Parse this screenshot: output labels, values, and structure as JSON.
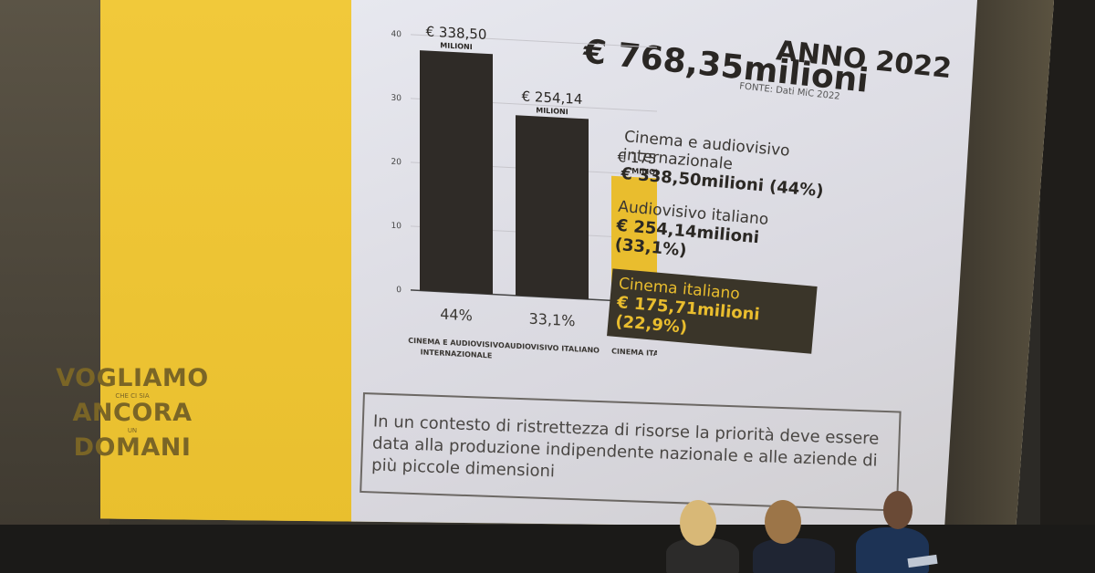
{
  "headline": {
    "line1": "ANNO 2022",
    "line2": "€ 768,35milioni"
  },
  "source": "FONTE: Dati MiC 2022",
  "chart_data": {
    "type": "bar",
    "categories": [
      "CINEMA E AUDIOVISIVO INTERNAZIONALE",
      "AUDIOVISIVO ITALIANO",
      "CINEMA ITALIANO"
    ],
    "values": [
      338.5,
      254.14,
      175.71
    ],
    "value_labels": [
      "€ 338,50",
      "€ 254,14",
      "€ 175,71"
    ],
    "value_unit": "MILIONI",
    "percent_labels": [
      "44%",
      "33,1%",
      "22,9%"
    ],
    "y_ticks": [
      0,
      10,
      20,
      30,
      40
    ],
    "colors": [
      "#2f2b27",
      "#2f2b27",
      "#e9bd2e"
    ]
  },
  "legend": {
    "items": [
      {
        "label": "Cinema e audiovisivo internazionale",
        "value": "€ 338,50milioni (44%)"
      },
      {
        "label": "Audiovisivo italiano",
        "value": "€ 254,14milioni (33,1%)"
      },
      {
        "label": "Cinema italiano",
        "value": "€ 175,71milioni (22,9%)"
      }
    ]
  },
  "callout": "In un contesto di ristrettezza di risorse la priorità deve essere data alla produzione indipendente nazionale e alle aziende di più piccole dimensioni",
  "logo": {
    "line1": "VOGLIAMO",
    "small1": "CHE CI SIA",
    "line2": "ANCORA",
    "small2": "UN",
    "line3": "DOMANI"
  },
  "colors": {
    "accent": "#e9bd2e",
    "dark": "#2f2b27"
  }
}
